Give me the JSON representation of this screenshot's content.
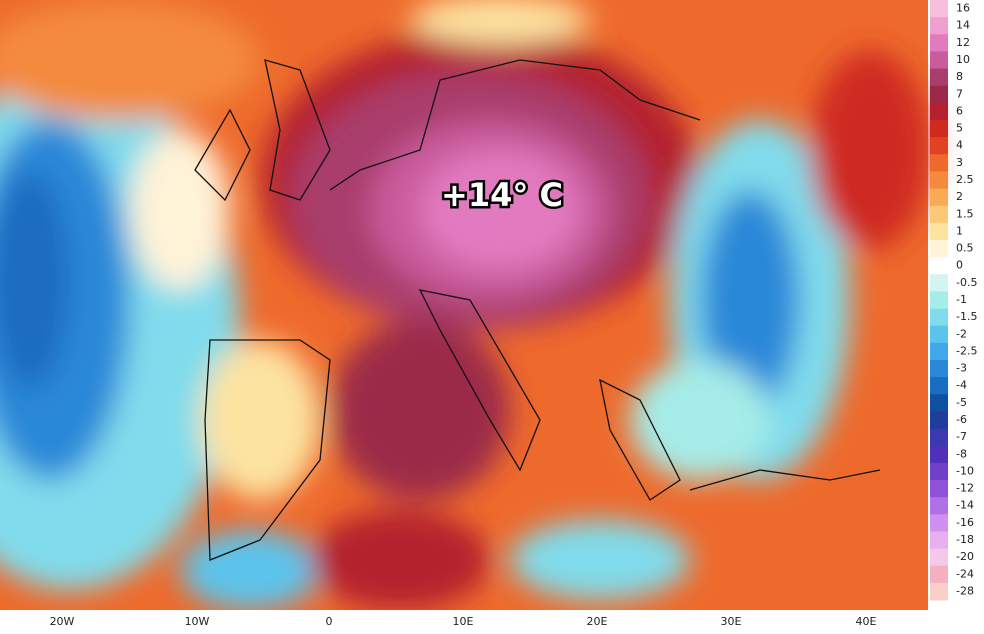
{
  "annotation": "+14° C",
  "x_axis": {
    "labels": [
      "20W",
      "10W",
      "0",
      "10E",
      "20E",
      "30E",
      "40E"
    ]
  },
  "colorbar": {
    "levels": [
      {
        "label": "16",
        "color": "#f6bfdc"
      },
      {
        "label": "14",
        "color": "#ef9fd0"
      },
      {
        "label": "12",
        "color": "#e27abf"
      },
      {
        "label": "10",
        "color": "#c95c9c"
      },
      {
        "label": "8",
        "color": "#a93d6c"
      },
      {
        "label": "7",
        "color": "#9b2a48"
      },
      {
        "label": "6",
        "color": "#b4202e"
      },
      {
        "label": "5",
        "color": "#cf2a20"
      },
      {
        "label": "4",
        "color": "#e14222"
      },
      {
        "label": "3",
        "color": "#ee6a2c"
      },
      {
        "label": "2.5",
        "color": "#f48a3c"
      },
      {
        "label": "2",
        "color": "#f8aa56"
      },
      {
        "label": "1.5",
        "color": "#fbc878"
      },
      {
        "label": "1",
        "color": "#fde3a0"
      },
      {
        "label": "0.5",
        "color": "#fff3d8"
      },
      {
        "label": "0",
        "color": "#ffffff"
      },
      {
        "label": "-0.5",
        "color": "#d2f5f4"
      },
      {
        "label": "-1",
        "color": "#a6ece8"
      },
      {
        "label": "-1.5",
        "color": "#80dcec"
      },
      {
        "label": "-2",
        "color": "#5cc4ec"
      },
      {
        "label": "-2.5",
        "color": "#40a8e8"
      },
      {
        "label": "-3",
        "color": "#2a88d8"
      },
      {
        "label": "-4",
        "color": "#1a6cc0"
      },
      {
        "label": "-5",
        "color": "#1050a0"
      },
      {
        "label": "-6",
        "color": "#203c9c"
      },
      {
        "label": "-7",
        "color": "#3a3aae"
      },
      {
        "label": "-8",
        "color": "#5030b8"
      },
      {
        "label": "-10",
        "color": "#7040c8"
      },
      {
        "label": "-12",
        "color": "#9050d8"
      },
      {
        "label": "-14",
        "color": "#b070e8"
      },
      {
        "label": "-16",
        "color": "#d090f0"
      },
      {
        "label": "-18",
        "color": "#e8b0f0"
      },
      {
        "label": "-20",
        "color": "#f4c8e8"
      },
      {
        "label": "-24",
        "color": "#f4b0c0"
      },
      {
        "label": "-28",
        "color": "#f8d0c8"
      }
    ]
  }
}
